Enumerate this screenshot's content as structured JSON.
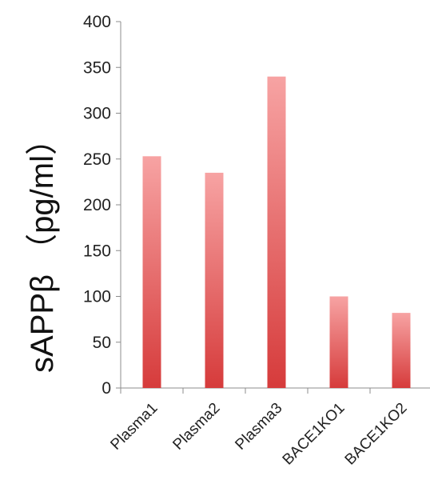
{
  "chart_data": {
    "type": "bar",
    "categories": [
      "Plasma1",
      "Plasma2",
      "Plasma3",
      "BACE1KO1",
      "BACE1KO2"
    ],
    "values": [
      253,
      235,
      340,
      100,
      82
    ],
    "title": "",
    "xlabel": "",
    "ylabel": "sAPPβ （pg/ml）",
    "ylim": [
      0,
      400
    ],
    "yticks": [
      0,
      50,
      100,
      150,
      200,
      250,
      300,
      350,
      400
    ],
    "grid": false,
    "bar_color_top": "#f7a3a3",
    "bar_color_bottom": "#d63b3b"
  }
}
